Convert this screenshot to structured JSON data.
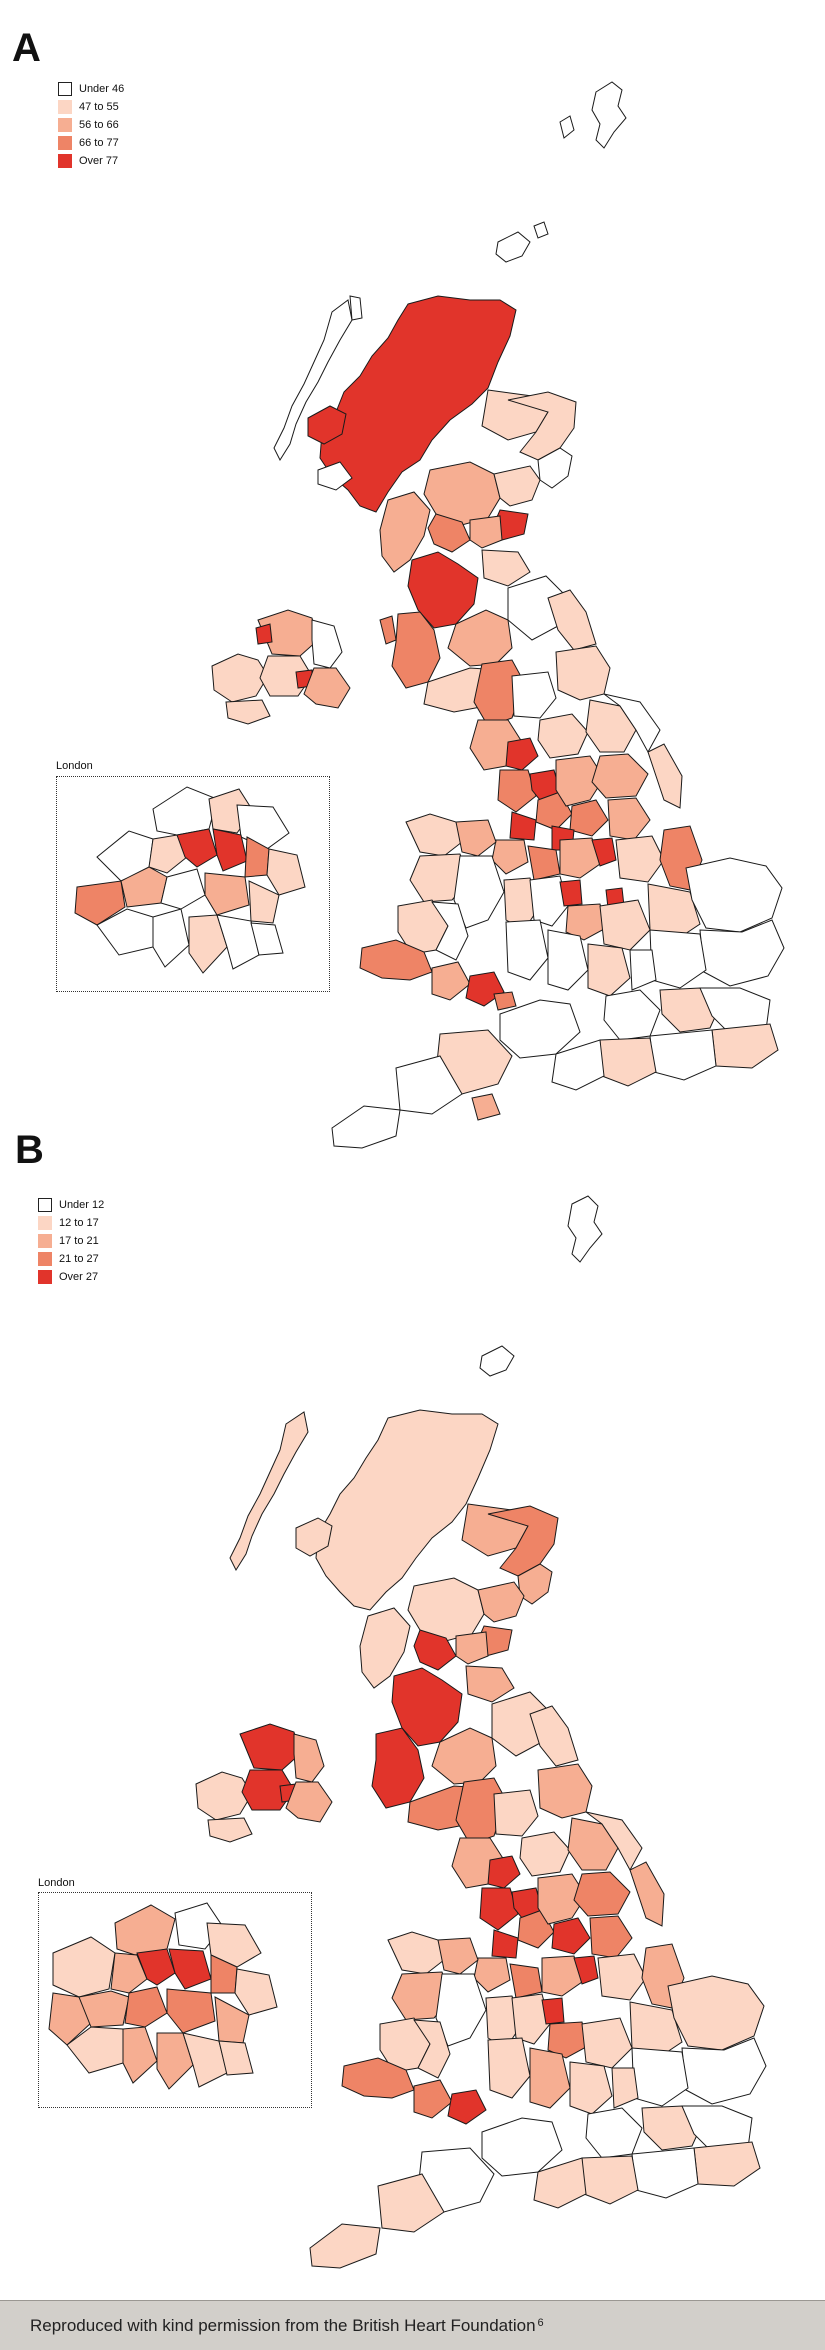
{
  "panels": [
    {
      "label": "A",
      "legend": [
        {
          "label": "Under 46",
          "color": "#ffffff"
        },
        {
          "label": "47 to 55",
          "color": "#fcd6c4"
        },
        {
          "label": "56 to 66",
          "color": "#f6ae92"
        },
        {
          "label": "66 to 77",
          "color": "#ee8466"
        },
        {
          "label": "Over 77",
          "color": "#e1342b"
        }
      ],
      "inset_label": "London"
    },
    {
      "label": "B",
      "legend": [
        {
          "label": "Under 12",
          "color": "#ffffff"
        },
        {
          "label": "12 to 17",
          "color": "#fcd6c4"
        },
        {
          "label": "17 to 21",
          "color": "#f6ae92"
        },
        {
          "label": "21 to 27",
          "color": "#ee8466"
        },
        {
          "label": "Over 27",
          "color": "#e1342b"
        }
      ],
      "inset_label": "London"
    }
  ],
  "footer": {
    "text": "Reproduced with kind permission from the British Heart Foundation",
    "superscript": "6"
  }
}
